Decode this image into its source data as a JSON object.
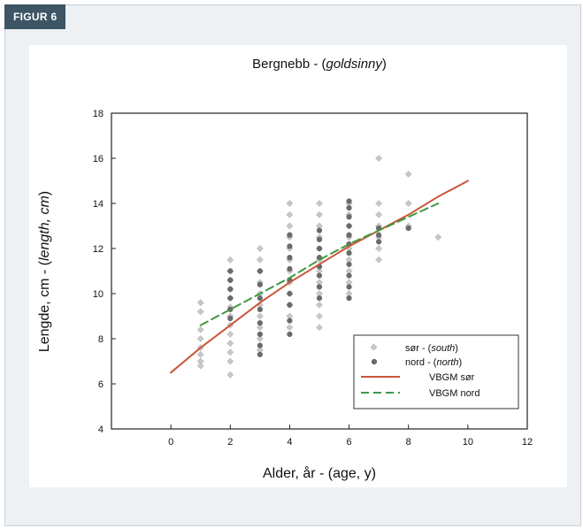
{
  "figure_label": "FIGUR 6",
  "chart_data": {
    "type": "scatter",
    "title": "Bergnebb - ",
    "title_italic": "goldsinny",
    "title_open": "(",
    "title_close": ")",
    "xlabel": "Alder, år - (age, y)",
    "ylabel_prefix": "Lengde, cm - (",
    "ylabel_italic": "length, cm",
    "ylabel_suffix": ")",
    "xlim": [
      -2,
      12
    ],
    "ylim": [
      4,
      18
    ],
    "x_ticks": [
      "0",
      "2",
      "4",
      "6",
      "8",
      "10",
      "12"
    ],
    "y_ticks": [
      "4",
      "6",
      "8",
      "10",
      "12",
      "14",
      "16",
      "18"
    ],
    "grid": false,
    "legend_position": "bottom-right",
    "series": [
      {
        "name": "sør",
        "legend_prefix": "sør - (",
        "legend_italic": "south",
        "legend_suffix": ")",
        "kind": "scatter",
        "color": "#c8c8c8",
        "points": [
          [
            1,
            6.8
          ],
          [
            1,
            7.0
          ],
          [
            1,
            7.3
          ],
          [
            1,
            7.6
          ],
          [
            1,
            8.0
          ],
          [
            1,
            8.4
          ],
          [
            1,
            9.2
          ],
          [
            1,
            9.6
          ],
          [
            2,
            6.4
          ],
          [
            2,
            7.0
          ],
          [
            2,
            7.4
          ],
          [
            2,
            7.8
          ],
          [
            2,
            8.2
          ],
          [
            2,
            8.6
          ],
          [
            2,
            9.0
          ],
          [
            2,
            9.4
          ],
          [
            2,
            9.8
          ],
          [
            2,
            10.2
          ],
          [
            2,
            10.6
          ],
          [
            2,
            11.0
          ],
          [
            2,
            11.5
          ],
          [
            3,
            7.5
          ],
          [
            3,
            8.0
          ],
          [
            3,
            8.5
          ],
          [
            3,
            9.0
          ],
          [
            3,
            9.5
          ],
          [
            3,
            10.0
          ],
          [
            3,
            10.5
          ],
          [
            3,
            11.0
          ],
          [
            3,
            11.5
          ],
          [
            3,
            12.0
          ],
          [
            4,
            8.5
          ],
          [
            4,
            9.0
          ],
          [
            4,
            9.5
          ],
          [
            4,
            10.0
          ],
          [
            4,
            10.5
          ],
          [
            4,
            11.0
          ],
          [
            4,
            11.5
          ],
          [
            4,
            12.0
          ],
          [
            4,
            12.5
          ],
          [
            4,
            13.0
          ],
          [
            4,
            13.5
          ],
          [
            4,
            14.0
          ],
          [
            5,
            8.5
          ],
          [
            5,
            9.0
          ],
          [
            5,
            9.5
          ],
          [
            5,
            10.0
          ],
          [
            5,
            10.5
          ],
          [
            5,
            11.0
          ],
          [
            5,
            11.5
          ],
          [
            5,
            12.0
          ],
          [
            5,
            12.5
          ],
          [
            5,
            13.0
          ],
          [
            5,
            13.5
          ],
          [
            5,
            14.0
          ],
          [
            6,
            10.0
          ],
          [
            6,
            10.5
          ],
          [
            6,
            11.0
          ],
          [
            6,
            11.5
          ],
          [
            6,
            12.0
          ],
          [
            6,
            12.5
          ],
          [
            6,
            13.0
          ],
          [
            6,
            13.5
          ],
          [
            6,
            14.0
          ],
          [
            7,
            11.5
          ],
          [
            7,
            12.0
          ],
          [
            7,
            12.5
          ],
          [
            7,
            13.0
          ],
          [
            7,
            13.5
          ],
          [
            7,
            14.0
          ],
          [
            7,
            16.0
          ],
          [
            8,
            13.0
          ],
          [
            8,
            14.0
          ],
          [
            8,
            15.3
          ],
          [
            9,
            12.5
          ]
        ]
      },
      {
        "name": "nord",
        "legend_prefix": "nord - (",
        "legend_italic": "north",
        "legend_suffix": ")",
        "kind": "scatter",
        "color": "#6b6b6b",
        "points": [
          [
            2,
            8.9
          ],
          [
            2,
            9.3
          ],
          [
            2,
            9.8
          ],
          [
            2,
            10.2
          ],
          [
            2,
            10.6
          ],
          [
            2,
            11.0
          ],
          [
            3,
            7.3
          ],
          [
            3,
            7.7
          ],
          [
            3,
            8.2
          ],
          [
            3,
            8.7
          ],
          [
            3,
            9.3
          ],
          [
            3,
            9.8
          ],
          [
            3,
            10.4
          ],
          [
            3,
            11.0
          ],
          [
            4,
            8.2
          ],
          [
            4,
            8.8
          ],
          [
            4,
            9.5
          ],
          [
            4,
            10.0
          ],
          [
            4,
            10.6
          ],
          [
            4,
            11.1
          ],
          [
            4,
            11.6
          ],
          [
            4,
            12.1
          ],
          [
            4,
            12.6
          ],
          [
            5,
            9.8
          ],
          [
            5,
            10.3
          ],
          [
            5,
            10.8
          ],
          [
            5,
            11.2
          ],
          [
            5,
            11.6
          ],
          [
            5,
            12.0
          ],
          [
            5,
            12.4
          ],
          [
            5,
            12.8
          ],
          [
            6,
            9.8
          ],
          [
            6,
            10.3
          ],
          [
            6,
            10.8
          ],
          [
            6,
            11.3
          ],
          [
            6,
            11.8
          ],
          [
            6,
            12.2
          ],
          [
            6,
            12.6
          ],
          [
            6,
            13.0
          ],
          [
            6,
            13.4
          ],
          [
            6,
            13.8
          ],
          [
            6,
            14.1
          ],
          [
            7,
            12.3
          ],
          [
            7,
            12.6
          ],
          [
            7,
            12.9
          ],
          [
            8,
            12.9
          ]
        ]
      },
      {
        "name": "VBGM sør",
        "legend_label": "VBGM sør",
        "kind": "line",
        "style": "solid",
        "color": "#c9553a",
        "points": [
          [
            0,
            6.5
          ],
          [
            1,
            7.6
          ],
          [
            2,
            8.6
          ],
          [
            3,
            9.6
          ],
          [
            4,
            10.5
          ],
          [
            5,
            11.3
          ],
          [
            6,
            12.1
          ],
          [
            7,
            12.8
          ],
          [
            8,
            13.5
          ],
          [
            9,
            14.3
          ],
          [
            10,
            15.0
          ]
        ]
      },
      {
        "name": "VBGM nord",
        "legend_label": "VBGM nord",
        "kind": "line",
        "style": "dashed",
        "color": "#3f9a3f",
        "points": [
          [
            1,
            8.6
          ],
          [
            2,
            9.3
          ],
          [
            3,
            10.0
          ],
          [
            4,
            10.7
          ],
          [
            5,
            11.5
          ],
          [
            6,
            12.2
          ],
          [
            7,
            12.8
          ],
          [
            8,
            13.4
          ],
          [
            9,
            14.0
          ]
        ]
      }
    ]
  }
}
